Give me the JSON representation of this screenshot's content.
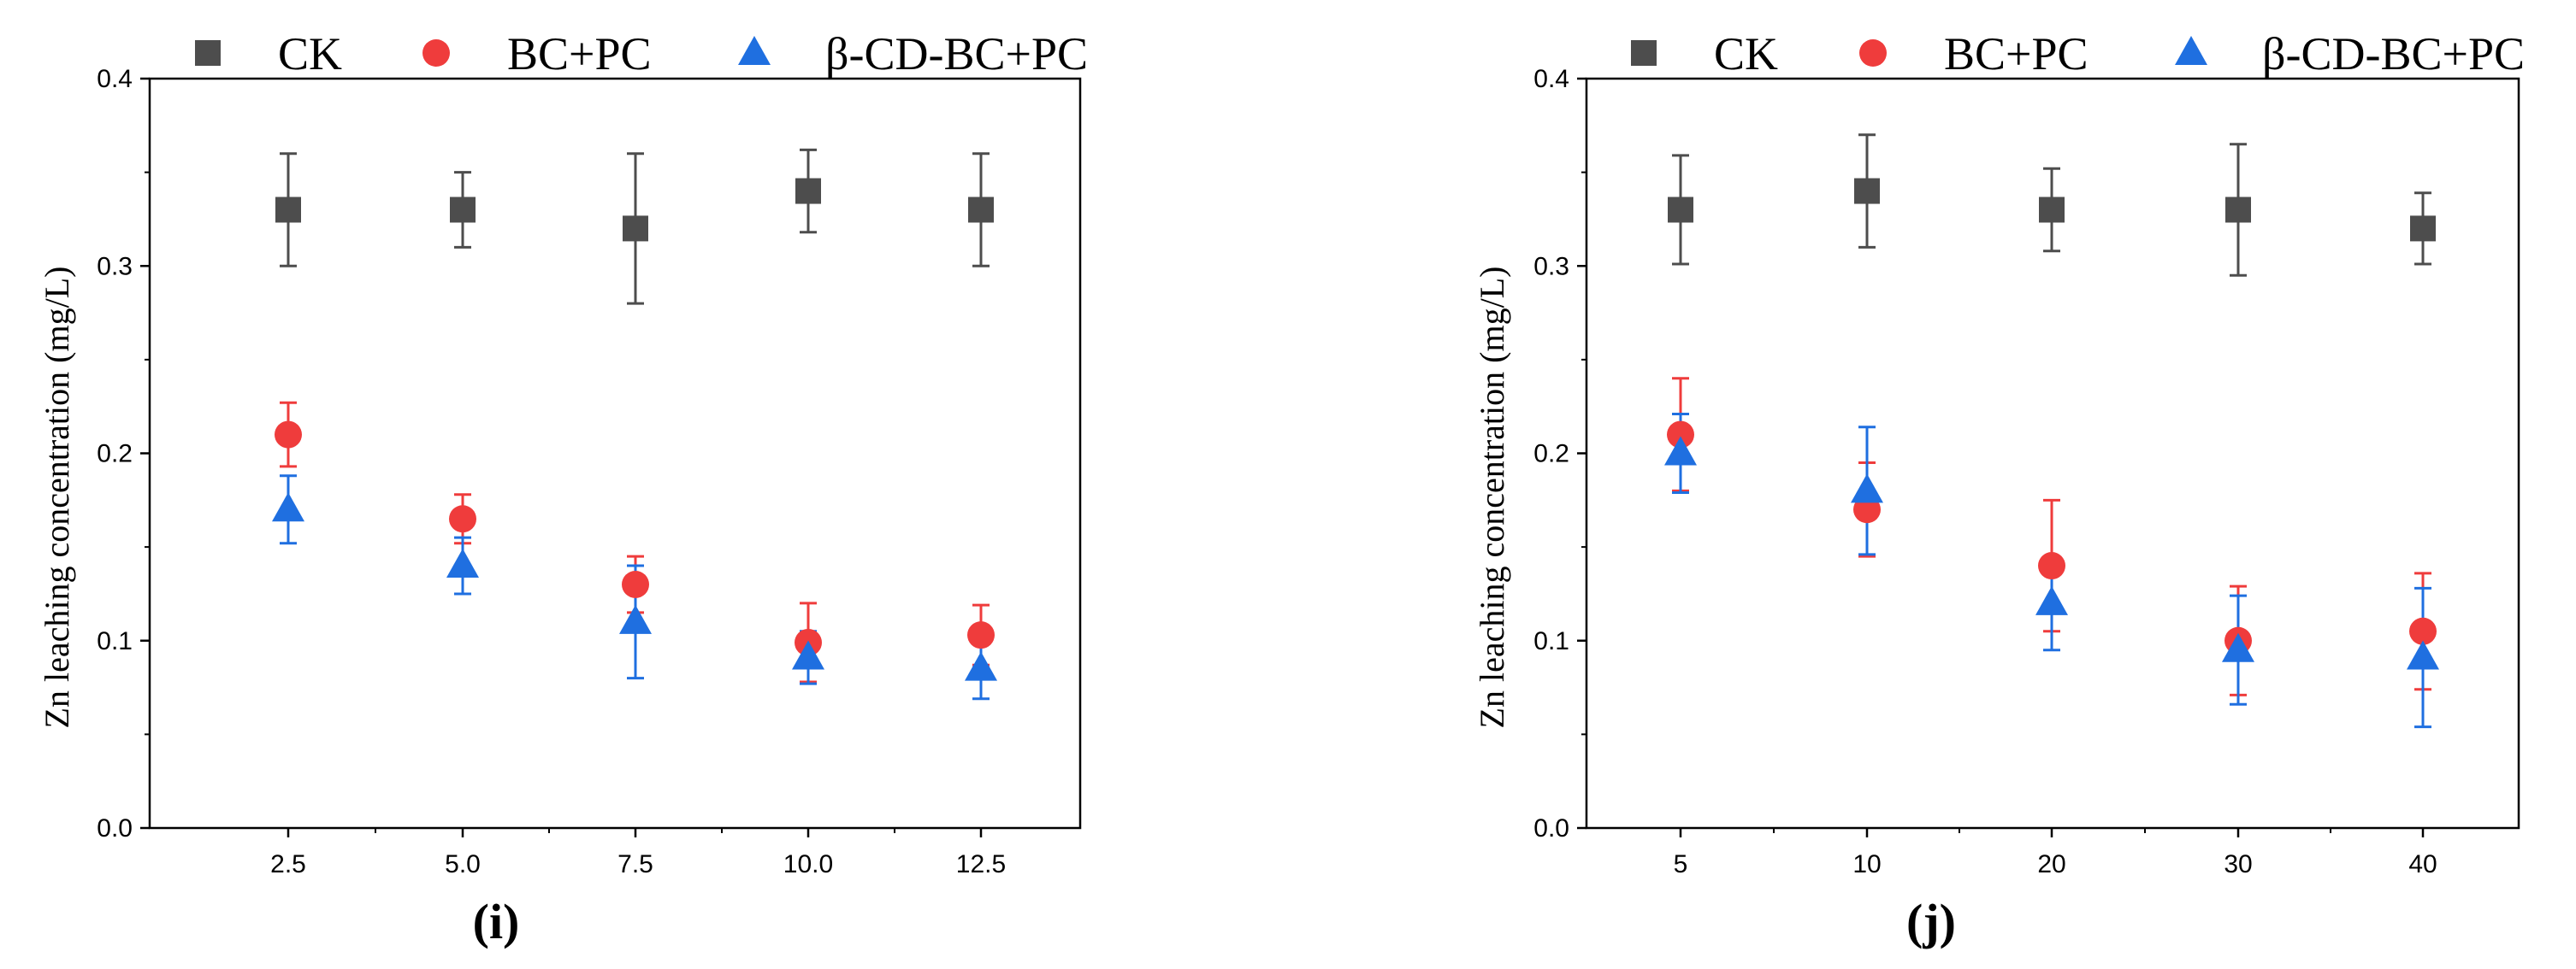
{
  "chart_data": [
    {
      "type": "scatter",
      "panel_label": "(i)",
      "xlabel": "",
      "ylabel": "Zn leaching concentration (mg/L)",
      "categories": [
        "2.5",
        "5.0",
        "7.5",
        "10.0",
        "12.5"
      ],
      "ylim": [
        0,
        0.4
      ],
      "yticks": [
        "0.0",
        "0.1",
        "0.2",
        "0.3",
        "0.4"
      ],
      "legend_position": "top",
      "series": [
        {
          "name": "CK",
          "marker": "square",
          "color": "#4d4d4d",
          "values": [
            0.33,
            0.33,
            0.32,
            0.34,
            0.33
          ],
          "errors": [
            0.03,
            0.02,
            0.04,
            0.022,
            0.03
          ]
        },
        {
          "name": "BC+PC",
          "marker": "circle",
          "color": "#ef3c3c",
          "values": [
            0.21,
            0.165,
            0.13,
            0.099,
            0.103
          ],
          "errors": [
            0.017,
            0.013,
            0.015,
            0.021,
            0.016
          ]
        },
        {
          "name": "β-CD-BC+PC",
          "marker": "triangle",
          "color": "#1f6fe0",
          "values": [
            0.17,
            0.14,
            0.11,
            0.091,
            0.085
          ],
          "errors": [
            0.018,
            0.015,
            0.03,
            0.014,
            0.016
          ]
        }
      ]
    },
    {
      "type": "scatter",
      "panel_label": "(j)",
      "xlabel": "",
      "ylabel": "Zn leaching concentration (mg/L)",
      "categories": [
        "5",
        "10",
        "20",
        "30",
        "40"
      ],
      "ylim": [
        0,
        0.4
      ],
      "yticks": [
        "0.0",
        "0.1",
        "0.2",
        "0.3",
        "0.4"
      ],
      "legend_position": "top",
      "series": [
        {
          "name": "CK",
          "marker": "square",
          "color": "#4d4d4d",
          "values": [
            0.33,
            0.34,
            0.33,
            0.33,
            0.32
          ],
          "errors": [
            0.029,
            0.03,
            0.022,
            0.035,
            0.019
          ]
        },
        {
          "name": "BC+PC",
          "marker": "circle",
          "color": "#ef3c3c",
          "values": [
            0.21,
            0.17,
            0.14,
            0.1,
            0.105
          ],
          "errors": [
            0.03,
            0.025,
            0.035,
            0.029,
            0.031
          ]
        },
        {
          "name": "β-CD-BC+PC",
          "marker": "triangle",
          "color": "#1f6fe0",
          "values": [
            0.2,
            0.18,
            0.12,
            0.095,
            0.091
          ],
          "errors": [
            0.021,
            0.034,
            0.025,
            0.029,
            0.037
          ]
        }
      ]
    }
  ]
}
